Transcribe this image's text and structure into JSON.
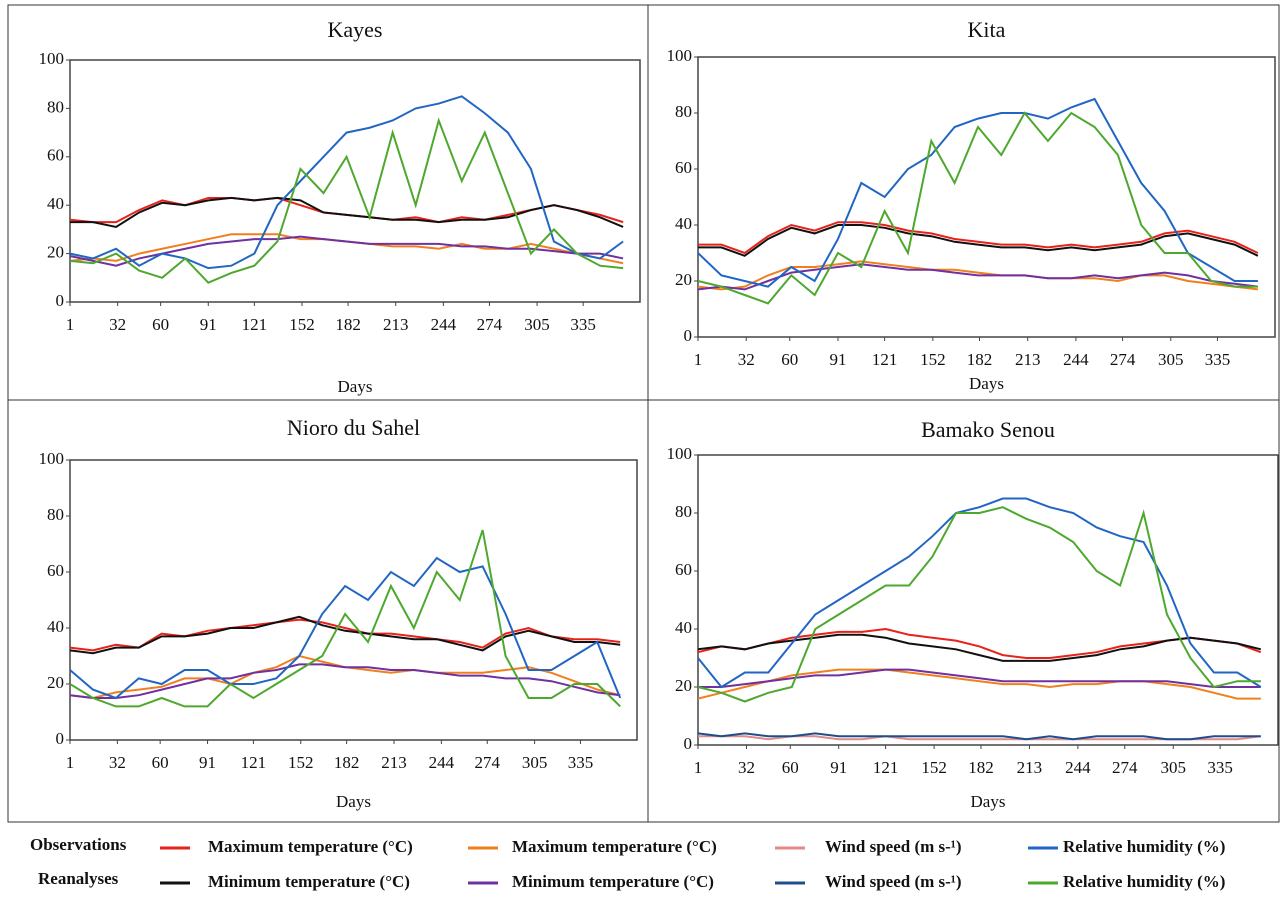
{
  "legend": {
    "rows": [
      "Observations",
      "Reanalyses"
    ]
  },
  "chart_data": [
    {
      "type": "line",
      "title": "Kayes",
      "x_label": "Days",
      "x": [
        1,
        16,
        31,
        46,
        61,
        76,
        91,
        106,
        121,
        136,
        151,
        166,
        181,
        196,
        211,
        226,
        241,
        256,
        271,
        286,
        301,
        316,
        331,
        346,
        361
      ],
      "xlim": [
        1,
        372
      ],
      "xticks": [
        1,
        32,
        60,
        91,
        121,
        152,
        182,
        213,
        244,
        274,
        305,
        335
      ],
      "ylim": [
        0,
        100
      ],
      "yticks": [
        0,
        20,
        40,
        60,
        80,
        100
      ],
      "series": [
        {
          "name": "Maximum temperature (°C)",
          "color": "#e8221b",
          "values": [
            34,
            33,
            33,
            38,
            42,
            40,
            43,
            43,
            42,
            43,
            40,
            37,
            36,
            35,
            34,
            35,
            33,
            35,
            34,
            36,
            38,
            40,
            38,
            36,
            33
          ]
        },
        {
          "name": "Minimum temperature (°C)",
          "color": "#111111",
          "values": [
            33,
            33,
            31,
            37,
            41,
            40,
            42,
            43,
            42,
            43,
            42,
            37,
            36,
            35,
            34,
            34,
            33,
            34,
            34,
            35,
            38,
            40,
            38,
            35,
            31
          ]
        },
        {
          "name": "Maximum temperature (°C)",
          "color": "#f07f1e",
          "values": [
            17,
            18,
            17,
            20,
            22,
            24,
            26,
            28,
            28,
            28,
            26,
            26,
            25,
            24,
            23,
            23,
            22,
            24,
            22,
            22,
            24,
            22,
            20,
            18,
            16
          ]
        },
        {
          "name": "Minimum temperature (°C)",
          "color": "#7030a0",
          "values": [
            19,
            17,
            15,
            18,
            20,
            22,
            24,
            25,
            26,
            26,
            27,
            26,
            25,
            24,
            24,
            24,
            24,
            23,
            23,
            22,
            22,
            21,
            20,
            20,
            18
          ]
        },
        {
          "name": "Relative humidity (%)",
          "color": "#2266c4",
          "values": [
            20,
            18,
            22,
            15,
            20,
            18,
            14,
            15,
            20,
            40,
            50,
            60,
            70,
            72,
            75,
            80,
            82,
            85,
            78,
            70,
            55,
            25,
            20,
            18,
            25
          ]
        },
        {
          "name": "Relative humidity (%)",
          "color": "#4ea82e",
          "values": [
            17,
            16,
            20,
            13,
            10,
            18,
            8,
            12,
            15,
            25,
            55,
            45,
            60,
            35,
            70,
            40,
            75,
            50,
            70,
            45,
            20,
            30,
            20,
            15,
            14
          ]
        }
      ]
    },
    {
      "type": "line",
      "title": "Kita",
      "x_label": "Days",
      "x": [
        1,
        16,
        31,
        46,
        61,
        76,
        91,
        106,
        121,
        136,
        151,
        166,
        181,
        196,
        211,
        226,
        241,
        256,
        271,
        286,
        301,
        316,
        331,
        346,
        361
      ],
      "xlim": [
        1,
        372
      ],
      "xticks": [
        1,
        32,
        60,
        91,
        121,
        152,
        182,
        213,
        244,
        274,
        305,
        335
      ],
      "ylim": [
        0,
        100
      ],
      "yticks": [
        0,
        20,
        40,
        60,
        80,
        100
      ],
      "series": [
        {
          "name": "Maximum temperature (°C)",
          "color": "#e8221b",
          "values": [
            33,
            33,
            30,
            36,
            40,
            38,
            41,
            41,
            40,
            38,
            37,
            35,
            34,
            33,
            33,
            32,
            33,
            32,
            33,
            34,
            37,
            38,
            36,
            34,
            30
          ]
        },
        {
          "name": "Minimum temperature (°C)",
          "color": "#111111",
          "values": [
            32,
            32,
            29,
            35,
            39,
            37,
            40,
            40,
            39,
            37,
            36,
            34,
            33,
            32,
            32,
            31,
            32,
            31,
            32,
            33,
            36,
            37,
            35,
            33,
            29
          ]
        },
        {
          "name": "Maximum temperature (°C)",
          "color": "#f07f1e",
          "values": [
            18,
            17,
            18,
            22,
            25,
            25,
            26,
            27,
            26,
            25,
            24,
            24,
            23,
            22,
            22,
            21,
            21,
            21,
            20,
            22,
            22,
            20,
            19,
            18,
            17
          ]
        },
        {
          "name": "Minimum temperature (°C)",
          "color": "#7030a0",
          "values": [
            17,
            18,
            17,
            20,
            23,
            24,
            25,
            26,
            25,
            24,
            24,
            23,
            22,
            22,
            22,
            21,
            21,
            22,
            21,
            22,
            23,
            22,
            20,
            19,
            18
          ]
        },
        {
          "name": "Relative humidity (%)",
          "color": "#2266c4",
          "values": [
            30,
            22,
            20,
            18,
            25,
            20,
            35,
            55,
            50,
            60,
            65,
            75,
            78,
            80,
            80,
            78,
            82,
            85,
            70,
            55,
            45,
            30,
            25,
            20,
            20
          ]
        },
        {
          "name": "Relative humidity (%)",
          "color": "#4ea82e",
          "values": [
            20,
            18,
            15,
            12,
            22,
            15,
            30,
            25,
            45,
            30,
            70,
            55,
            75,
            65,
            80,
            70,
            80,
            75,
            65,
            40,
            30,
            30,
            20,
            18,
            18
          ]
        }
      ]
    },
    {
      "type": "line",
      "title": "Nioro du Sahel",
      "x_label": "Days",
      "x": [
        1,
        16,
        31,
        46,
        61,
        76,
        91,
        106,
        121,
        136,
        151,
        166,
        181,
        196,
        211,
        226,
        241,
        256,
        271,
        286,
        301,
        316,
        331,
        346,
        361
      ],
      "xlim": [
        1,
        372
      ],
      "xticks": [
        1,
        32,
        60,
        91,
        121,
        152,
        182,
        213,
        244,
        274,
        305,
        335
      ],
      "ylim": [
        0,
        100
      ],
      "yticks": [
        0,
        20,
        40,
        60,
        80,
        100
      ],
      "series": [
        {
          "name": "Maximum temperature (°C)",
          "color": "#e8221b",
          "values": [
            33,
            32,
            34,
            33,
            38,
            37,
            39,
            40,
            41,
            42,
            43,
            42,
            40,
            38,
            38,
            37,
            36,
            35,
            33,
            38,
            40,
            37,
            36,
            36,
            35
          ]
        },
        {
          "name": "Minimum temperature (°C)",
          "color": "#111111",
          "values": [
            32,
            31,
            33,
            33,
            37,
            37,
            38,
            40,
            40,
            42,
            44,
            41,
            39,
            38,
            37,
            36,
            36,
            34,
            32,
            37,
            39,
            37,
            35,
            35,
            34
          ]
        },
        {
          "name": "Maximum temperature (°C)",
          "color": "#f07f1e",
          "values": [
            16,
            15,
            17,
            18,
            19,
            22,
            22,
            20,
            24,
            26,
            30,
            28,
            26,
            25,
            24,
            25,
            24,
            24,
            24,
            25,
            26,
            24,
            21,
            18,
            16
          ]
        },
        {
          "name": "Minimum temperature (°C)",
          "color": "#7030a0",
          "values": [
            16,
            15,
            15,
            16,
            18,
            20,
            22,
            22,
            24,
            25,
            27,
            27,
            26,
            26,
            25,
            25,
            24,
            23,
            23,
            22,
            22,
            21,
            19,
            17,
            16
          ]
        },
        {
          "name": "Relative humidity (%)",
          "color": "#2266c4",
          "values": [
            25,
            18,
            15,
            22,
            20,
            25,
            25,
            20,
            20,
            22,
            30,
            45,
            55,
            50,
            60,
            55,
            65,
            60,
            62,
            45,
            25,
            25,
            30,
            35,
            15
          ]
        },
        {
          "name": "Relative humidity (%)",
          "color": "#4ea82e",
          "values": [
            20,
            15,
            12,
            12,
            15,
            12,
            12,
            20,
            15,
            20,
            25,
            30,
            45,
            35,
            55,
            40,
            60,
            50,
            75,
            30,
            15,
            15,
            20,
            20,
            12
          ]
        }
      ]
    },
    {
      "type": "line",
      "title": "Bamako Senou",
      "x_label": "Days",
      "x": [
        1,
        16,
        31,
        46,
        61,
        76,
        91,
        106,
        121,
        136,
        151,
        166,
        181,
        196,
        211,
        226,
        241,
        256,
        271,
        286,
        301,
        316,
        331,
        346,
        361
      ],
      "xlim": [
        1,
        372
      ],
      "xticks": [
        1,
        32,
        60,
        91,
        121,
        152,
        182,
        213,
        244,
        274,
        305,
        335
      ],
      "ylim": [
        0,
        100
      ],
      "yticks": [
        0,
        20,
        40,
        60,
        80,
        100
      ],
      "series": [
        {
          "name": "Maximum temperature (°C)",
          "color": "#e8221b",
          "values": [
            32,
            34,
            33,
            35,
            37,
            38,
            39,
            39,
            40,
            38,
            37,
            36,
            34,
            31,
            30,
            30,
            31,
            32,
            34,
            35,
            36,
            37,
            36,
            35,
            32
          ]
        },
        {
          "name": "Minimum temperature (°C)",
          "color": "#111111",
          "values": [
            33,
            34,
            33,
            35,
            36,
            37,
            38,
            38,
            37,
            35,
            34,
            33,
            31,
            29,
            29,
            29,
            30,
            31,
            33,
            34,
            36,
            37,
            36,
            35,
            33
          ]
        },
        {
          "name": "Maximum temperature (°C)",
          "color": "#f07f1e",
          "values": [
            16,
            18,
            20,
            22,
            24,
            25,
            26,
            26,
            26,
            25,
            24,
            23,
            22,
            21,
            21,
            20,
            21,
            21,
            22,
            22,
            21,
            20,
            18,
            16,
            16
          ]
        },
        {
          "name": "Minimum temperature (°C)",
          "color": "#7030a0",
          "values": [
            20,
            20,
            21,
            22,
            23,
            24,
            24,
            25,
            26,
            26,
            25,
            24,
            23,
            22,
            22,
            22,
            22,
            22,
            22,
            22,
            22,
            21,
            20,
            20,
            20
          ]
        },
        {
          "name": "Wind speed (m s-¹)",
          "color": "#e08a8a",
          "values": [
            3,
            3,
            3,
            2,
            3,
            3,
            2,
            2,
            3,
            2,
            2,
            2,
            2,
            2,
            2,
            2,
            2,
            2,
            2,
            2,
            2,
            2,
            2,
            2,
            3
          ]
        },
        {
          "name": "Wind speed (m s-¹)",
          "color": "#1f4e8c",
          "values": [
            4,
            3,
            4,
            3,
            3,
            4,
            3,
            3,
            3,
            3,
            3,
            3,
            3,
            3,
            2,
            3,
            2,
            3,
            3,
            3,
            2,
            2,
            3,
            3,
            3
          ]
        },
        {
          "name": "Relative humidity (%)",
          "color": "#2266c4",
          "values": [
            30,
            20,
            25,
            25,
            35,
            45,
            50,
            55,
            60,
            65,
            72,
            80,
            82,
            85,
            85,
            82,
            80,
            75,
            72,
            70,
            55,
            35,
            25,
            25,
            20
          ]
        },
        {
          "name": "Relative humidity (%)",
          "color": "#4ea82e",
          "values": [
            20,
            18,
            15,
            18,
            20,
            40,
            45,
            50,
            55,
            55,
            65,
            80,
            80,
            82,
            78,
            75,
            70,
            60,
            55,
            80,
            45,
            30,
            20,
            22,
            22
          ]
        }
      ]
    }
  ]
}
